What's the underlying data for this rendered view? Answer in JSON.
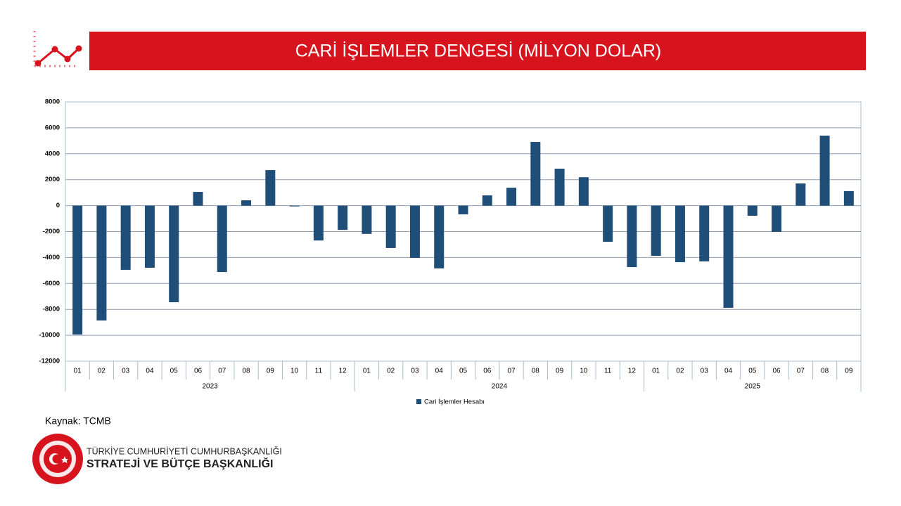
{
  "header": {
    "title": "CARİ İŞLEMLER DENGESİ (MİLYON DOLAR)"
  },
  "source": "Kaynak: TCMB",
  "logo": {
    "line1": "TÜRKİYE CUMHURİYETİ CUMHURBAŞKANLIĞI",
    "line2": "STRATEJİ VE BÜTÇE BAŞKANLIĞI"
  },
  "chart_data": {
    "type": "bar",
    "groups": [
      {
        "label": "2023",
        "categories": [
          "01",
          "02",
          "03",
          "04",
          "05",
          "06",
          "07",
          "08",
          "09",
          "10",
          "11",
          "12"
        ]
      },
      {
        "label": "2024",
        "categories": [
          "01",
          "02",
          "03",
          "04",
          "05",
          "06",
          "07",
          "08",
          "09",
          "10",
          "11",
          "12"
        ]
      },
      {
        "label": "2025",
        "categories": [
          "01",
          "02",
          "03",
          "04",
          "05",
          "06",
          "07",
          "08",
          "09"
        ]
      }
    ],
    "series": [
      {
        "name": "Cari İşlemler Hesabı",
        "color": "#1f4e79",
        "values": [
          -9940,
          -8860,
          -4950,
          -4790,
          -7450,
          1060,
          -5120,
          410,
          2740,
          -60,
          -2690,
          -1870,
          -2180,
          -3270,
          -4030,
          -4840,
          -670,
          790,
          1380,
          4910,
          2850,
          2190,
          -2790,
          -4740,
          -3870,
          -4360,
          -4300,
          -7880,
          -780,
          -2020,
          1710,
          5400,
          1120
        ]
      }
    ],
    "ylim": [
      -12000,
      8000
    ],
    "yticks": [
      -12000,
      -10000,
      -8000,
      -6000,
      -4000,
      -2000,
      0,
      2000,
      4000,
      6000,
      8000
    ],
    "grid": true,
    "legend": "bottom"
  }
}
